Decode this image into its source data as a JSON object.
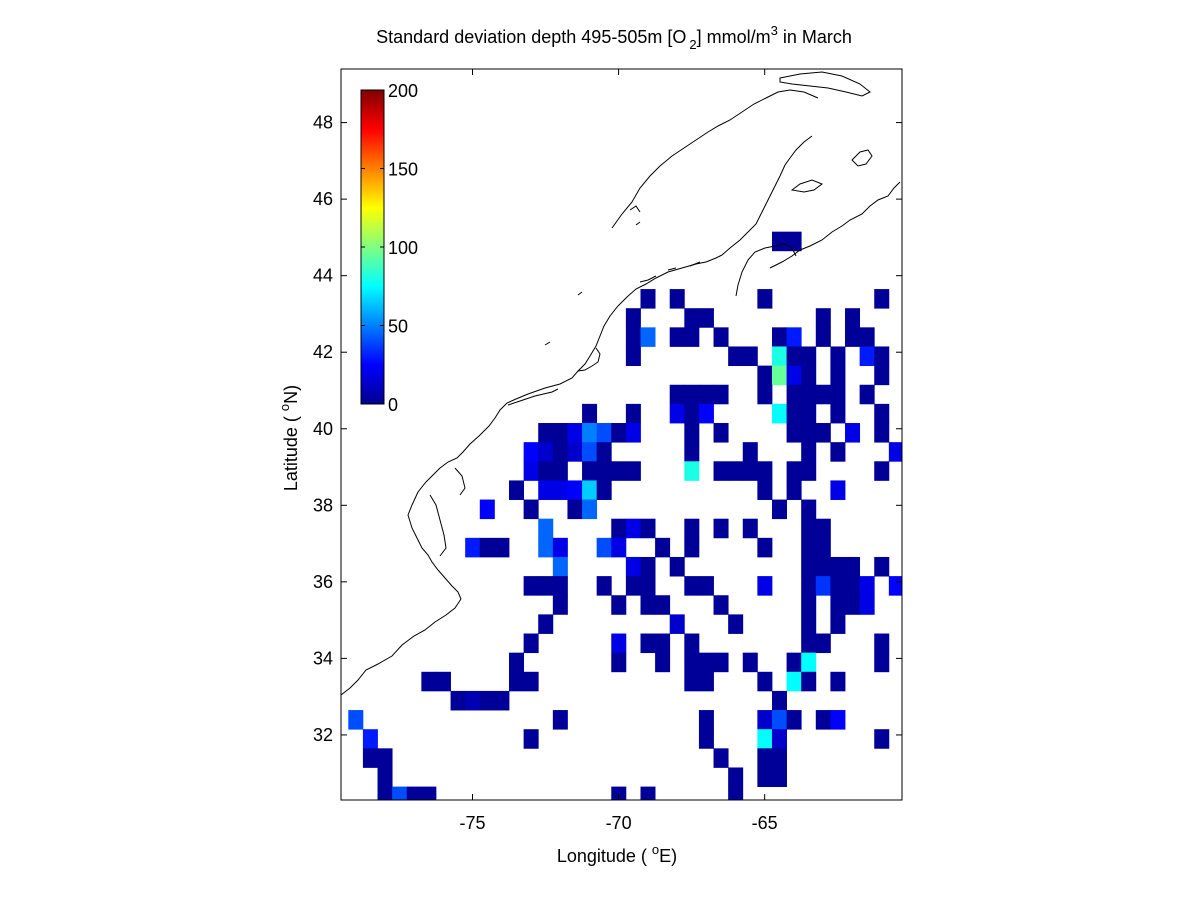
{
  "chart_data": {
    "type": "heatmap",
    "title": {
      "main": "Standard deviation depth 495-505m [O",
      "subscript": "2",
      "units_before_sup": "] mmol/m",
      "superscript": "3",
      "suffix": " in March"
    },
    "xlabel": {
      "prefix": "Longitude ( ",
      "superscript": "o",
      "suffix": "E)"
    },
    "ylabel": {
      "prefix": "Latitude ( ",
      "superscript": "o",
      "suffix": "N)"
    },
    "xlim": [
      -79.5,
      -60.3
    ],
    "ylim": [
      30.3,
      49.4
    ],
    "xticks": [
      -75,
      -70,
      -65
    ],
    "xtick_labels": [
      "-75",
      "-70",
      "-65"
    ],
    "yticks": [
      32,
      34,
      36,
      38,
      40,
      42,
      44,
      46,
      48
    ],
    "ytick_labels": [
      "32",
      "34",
      "36",
      "38",
      "40",
      "42",
      "44",
      "46",
      "48"
    ],
    "grid": false,
    "colormap": "jet",
    "colorbar": {
      "location": "top-left inside axes",
      "range": [
        0,
        200
      ],
      "ticks": [
        0,
        50,
        100,
        150,
        200
      ],
      "tick_labels": [
        "0",
        "50",
        "100",
        "150",
        "200"
      ]
    },
    "cell_size_deg": 1.0,
    "cell_span_note": "cells are centred on half-degree longitudes",
    "cells": [
      [
        -64.5,
        44.9,
        5
      ],
      [
        -64.0,
        44.9,
        5
      ],
      [
        -68.0,
        43.4,
        5
      ],
      [
        -69.0,
        43.4,
        5
      ],
      [
        -65.0,
        43.4,
        5
      ],
      [
        -61.0,
        43.4,
        5
      ],
      [
        -69.5,
        42.9,
        5
      ],
      [
        -67.5,
        42.9,
        5
      ],
      [
        -67.0,
        42.9,
        5
      ],
      [
        -63.0,
        42.9,
        5
      ],
      [
        -62.0,
        42.9,
        5
      ],
      [
        -69.5,
        42.4,
        5
      ],
      [
        -69.0,
        42.4,
        45
      ],
      [
        -68.0,
        42.4,
        5
      ],
      [
        -67.5,
        42.4,
        5
      ],
      [
        -66.5,
        42.4,
        5
      ],
      [
        -64.5,
        42.4,
        5
      ],
      [
        -64.0,
        42.4,
        30
      ],
      [
        -63.0,
        42.4,
        5
      ],
      [
        -62.0,
        42.4,
        5
      ],
      [
        -61.5,
        42.4,
        5
      ],
      [
        -69.5,
        41.9,
        5
      ],
      [
        -66.0,
        41.9,
        5
      ],
      [
        -65.5,
        41.9,
        5
      ],
      [
        -64.5,
        41.9,
        80
      ],
      [
        -64.0,
        41.9,
        5
      ],
      [
        -63.5,
        41.9,
        5
      ],
      [
        -62.5,
        41.9,
        5
      ],
      [
        -61.5,
        41.9,
        30
      ],
      [
        -61.0,
        41.9,
        5
      ],
      [
        -65.0,
        41.4,
        5
      ],
      [
        -64.5,
        41.4,
        95
      ],
      [
        -64.0,
        41.4,
        20
      ],
      [
        -63.5,
        41.4,
        5
      ],
      [
        -62.5,
        41.4,
        5
      ],
      [
        -61.0,
        41.4,
        5
      ],
      [
        -68.0,
        40.9,
        5
      ],
      [
        -67.5,
        40.9,
        5
      ],
      [
        -67.0,
        40.9,
        5
      ],
      [
        -66.5,
        40.9,
        5
      ],
      [
        -65.0,
        40.9,
        5
      ],
      [
        -64.0,
        40.9,
        5
      ],
      [
        -63.5,
        40.9,
        5
      ],
      [
        -63.0,
        40.9,
        5
      ],
      [
        -62.5,
        40.9,
        5
      ],
      [
        -61.5,
        40.9,
        5
      ],
      [
        -71.0,
        40.4,
        5
      ],
      [
        -69.5,
        40.4,
        5
      ],
      [
        -68.0,
        40.4,
        20
      ],
      [
        -67.5,
        40.4,
        5
      ],
      [
        -67.0,
        40.4,
        25
      ],
      [
        -64.5,
        40.4,
        75
      ],
      [
        -64.0,
        40.4,
        5
      ],
      [
        -63.5,
        40.4,
        5
      ],
      [
        -62.5,
        40.4,
        5
      ],
      [
        -61.0,
        40.4,
        5
      ],
      [
        -72.5,
        39.9,
        5
      ],
      [
        -72.0,
        39.9,
        5
      ],
      [
        -71.5,
        39.9,
        20
      ],
      [
        -71.0,
        39.9,
        50
      ],
      [
        -70.5,
        39.9,
        40
      ],
      [
        -70.0,
        39.9,
        5
      ],
      [
        -69.5,
        39.9,
        20
      ],
      [
        -67.5,
        39.9,
        5
      ],
      [
        -66.5,
        39.9,
        5
      ],
      [
        -64.0,
        39.9,
        5
      ],
      [
        -63.5,
        39.9,
        5
      ],
      [
        -63.0,
        39.9,
        5
      ],
      [
        -62.0,
        39.9,
        20
      ],
      [
        -61.0,
        39.9,
        5
      ],
      [
        -73.0,
        39.4,
        25
      ],
      [
        -72.5,
        39.4,
        15
      ],
      [
        -72.0,
        39.4,
        5
      ],
      [
        -71.5,
        39.4,
        15
      ],
      [
        -71.0,
        39.4,
        40
      ],
      [
        -70.5,
        39.4,
        5
      ],
      [
        -67.5,
        39.4,
        5
      ],
      [
        -65.5,
        39.4,
        5
      ],
      [
        -63.5,
        39.4,
        5
      ],
      [
        -62.5,
        39.4,
        5
      ],
      [
        -60.5,
        39.4,
        20
      ],
      [
        -73.0,
        38.9,
        20
      ],
      [
        -72.5,
        38.9,
        5
      ],
      [
        -72.0,
        38.9,
        5
      ],
      [
        -71.0,
        38.9,
        5
      ],
      [
        -70.5,
        38.9,
        5
      ],
      [
        -70.0,
        38.9,
        5
      ],
      [
        -69.5,
        38.9,
        5
      ],
      [
        -67.5,
        38.9,
        80
      ],
      [
        -66.5,
        38.9,
        5
      ],
      [
        -66.0,
        38.9,
        5
      ],
      [
        -65.5,
        38.9,
        5
      ],
      [
        -65.0,
        38.9,
        5
      ],
      [
        -64.0,
        38.9,
        5
      ],
      [
        -63.5,
        38.9,
        5
      ],
      [
        -61.0,
        38.9,
        5
      ],
      [
        -73.5,
        38.4,
        5
      ],
      [
        -72.5,
        38.4,
        20
      ],
      [
        -72.0,
        38.4,
        20
      ],
      [
        -71.5,
        38.4,
        25
      ],
      [
        -71.0,
        38.4,
        65
      ],
      [
        -70.5,
        38.4,
        5
      ],
      [
        -65.0,
        38.4,
        5
      ],
      [
        -64.0,
        38.4,
        5
      ],
      [
        -62.5,
        38.4,
        20
      ],
      [
        -74.5,
        37.9,
        25
      ],
      [
        -73.0,
        37.9,
        5
      ],
      [
        -71.5,
        37.9,
        5
      ],
      [
        -71.0,
        37.9,
        45
      ],
      [
        -64.5,
        37.9,
        5
      ],
      [
        -63.5,
        37.9,
        5
      ],
      [
        -72.5,
        37.4,
        45
      ],
      [
        -70.0,
        37.4,
        5
      ],
      [
        -69.5,
        37.4,
        20
      ],
      [
        -69.0,
        37.4,
        5
      ],
      [
        -67.5,
        37.4,
        5
      ],
      [
        -66.5,
        37.4,
        5
      ],
      [
        -65.5,
        37.4,
        5
      ],
      [
        -63.5,
        37.4,
        5
      ],
      [
        -63.0,
        37.4,
        5
      ],
      [
        -75.0,
        36.9,
        30
      ],
      [
        -74.5,
        36.9,
        5
      ],
      [
        -74.0,
        36.9,
        5
      ],
      [
        -72.5,
        36.9,
        45
      ],
      [
        -72.0,
        36.9,
        20
      ],
      [
        -70.5,
        36.9,
        40
      ],
      [
        -70.0,
        36.9,
        20
      ],
      [
        -68.5,
        36.9,
        5
      ],
      [
        -67.5,
        36.9,
        5
      ],
      [
        -65.0,
        36.9,
        5
      ],
      [
        -63.5,
        36.9,
        5
      ],
      [
        -63.0,
        36.9,
        5
      ],
      [
        -72.0,
        36.4,
        45
      ],
      [
        -69.5,
        36.4,
        20
      ],
      [
        -69.0,
        36.4,
        5
      ],
      [
        -68.0,
        36.4,
        5
      ],
      [
        -63.5,
        36.4,
        5
      ],
      [
        -63.0,
        36.4,
        5
      ],
      [
        -62.5,
        36.4,
        5
      ],
      [
        -62.0,
        36.4,
        5
      ],
      [
        -61.0,
        36.4,
        5
      ],
      [
        -73.0,
        35.9,
        5
      ],
      [
        -72.5,
        35.9,
        5
      ],
      [
        -72.0,
        35.9,
        5
      ],
      [
        -70.5,
        35.9,
        5
      ],
      [
        -69.5,
        35.9,
        5
      ],
      [
        -69.0,
        35.9,
        5
      ],
      [
        -67.5,
        35.9,
        5
      ],
      [
        -67.0,
        35.9,
        5
      ],
      [
        -65.0,
        35.9,
        20
      ],
      [
        -63.5,
        35.9,
        5
      ],
      [
        -63.0,
        35.9,
        35
      ],
      [
        -62.5,
        35.9,
        5
      ],
      [
        -62.0,
        35.9,
        5
      ],
      [
        -61.5,
        35.9,
        20
      ],
      [
        -60.5,
        35.9,
        25
      ],
      [
        -72.0,
        35.4,
        5
      ],
      [
        -70.0,
        35.4,
        5
      ],
      [
        -69.0,
        35.4,
        5
      ],
      [
        -68.5,
        35.4,
        5
      ],
      [
        -66.5,
        35.4,
        5
      ],
      [
        -63.5,
        35.4,
        5
      ],
      [
        -62.5,
        35.4,
        5
      ],
      [
        -62.0,
        35.4,
        5
      ],
      [
        -61.5,
        35.4,
        20
      ],
      [
        -72.5,
        34.9,
        5
      ],
      [
        -68.0,
        34.9,
        15
      ],
      [
        -66.0,
        34.9,
        5
      ],
      [
        -63.5,
        34.9,
        5
      ],
      [
        -62.5,
        34.9,
        5
      ],
      [
        -73.0,
        34.4,
        5
      ],
      [
        -70.0,
        34.4,
        20
      ],
      [
        -69.0,
        34.4,
        5
      ],
      [
        -68.5,
        34.4,
        5
      ],
      [
        -67.5,
        34.4,
        5
      ],
      [
        -63.5,
        34.4,
        5
      ],
      [
        -63.0,
        34.4,
        5
      ],
      [
        -61.0,
        34.4,
        5
      ],
      [
        -73.5,
        33.9,
        5
      ],
      [
        -70.0,
        33.9,
        5
      ],
      [
        -68.5,
        33.9,
        5
      ],
      [
        -67.5,
        33.9,
        5
      ],
      [
        -67.0,
        33.9,
        5
      ],
      [
        -66.5,
        33.9,
        5
      ],
      [
        -65.5,
        33.9,
        5
      ],
      [
        -64.0,
        33.9,
        5
      ],
      [
        -63.5,
        33.9,
        75
      ],
      [
        -61.0,
        33.9,
        5
      ],
      [
        -76.5,
        33.4,
        5
      ],
      [
        -76.0,
        33.4,
        5
      ],
      [
        -73.5,
        33.4,
        5
      ],
      [
        -73.0,
        33.4,
        5
      ],
      [
        -67.5,
        33.4,
        5
      ],
      [
        -67.0,
        33.4,
        5
      ],
      [
        -65.0,
        33.4,
        5
      ],
      [
        -64.0,
        33.4,
        75
      ],
      [
        -63.5,
        33.4,
        5
      ],
      [
        -62.5,
        33.4,
        5
      ],
      [
        -75.5,
        32.9,
        5
      ],
      [
        -75.0,
        32.9,
        10
      ],
      [
        -74.5,
        32.9,
        5
      ],
      [
        -74.0,
        32.9,
        5
      ],
      [
        -64.5,
        32.9,
        5
      ],
      [
        -79.0,
        32.4,
        40
      ],
      [
        -72.0,
        32.4,
        5
      ],
      [
        -67.0,
        32.4,
        5
      ],
      [
        -65.0,
        32.4,
        15
      ],
      [
        -64.5,
        32.4,
        40
      ],
      [
        -64.0,
        32.4,
        5
      ],
      [
        -63.0,
        32.4,
        5
      ],
      [
        -62.5,
        32.4,
        25
      ],
      [
        -78.5,
        31.9,
        30
      ],
      [
        -73.0,
        31.9,
        5
      ],
      [
        -67.0,
        31.9,
        5
      ],
      [
        -65.0,
        31.9,
        75
      ],
      [
        -64.5,
        31.9,
        15
      ],
      [
        -61.0,
        31.9,
        5
      ],
      [
        -78.5,
        31.4,
        5
      ],
      [
        -78.0,
        31.4,
        5
      ],
      [
        -66.5,
        31.4,
        5
      ],
      [
        -65.0,
        31.4,
        5
      ],
      [
        -64.5,
        31.4,
        5
      ],
      [
        -78.0,
        30.9,
        5
      ],
      [
        -66.0,
        30.9,
        5
      ],
      [
        -65.0,
        30.9,
        5
      ],
      [
        -64.5,
        30.9,
        5
      ],
      [
        -78.0,
        30.4,
        5
      ],
      [
        -77.5,
        30.4,
        40
      ],
      [
        -77.0,
        30.4,
        5
      ],
      [
        -76.5,
        30.4,
        5
      ],
      [
        -70.0,
        30.4,
        5
      ],
      [
        -69.0,
        30.4,
        5
      ],
      [
        -66.0,
        30.4,
        5
      ]
    ],
    "coastline_color": "#000000"
  },
  "colors": {
    "background": "#ffffff",
    "axes": "#000000"
  }
}
